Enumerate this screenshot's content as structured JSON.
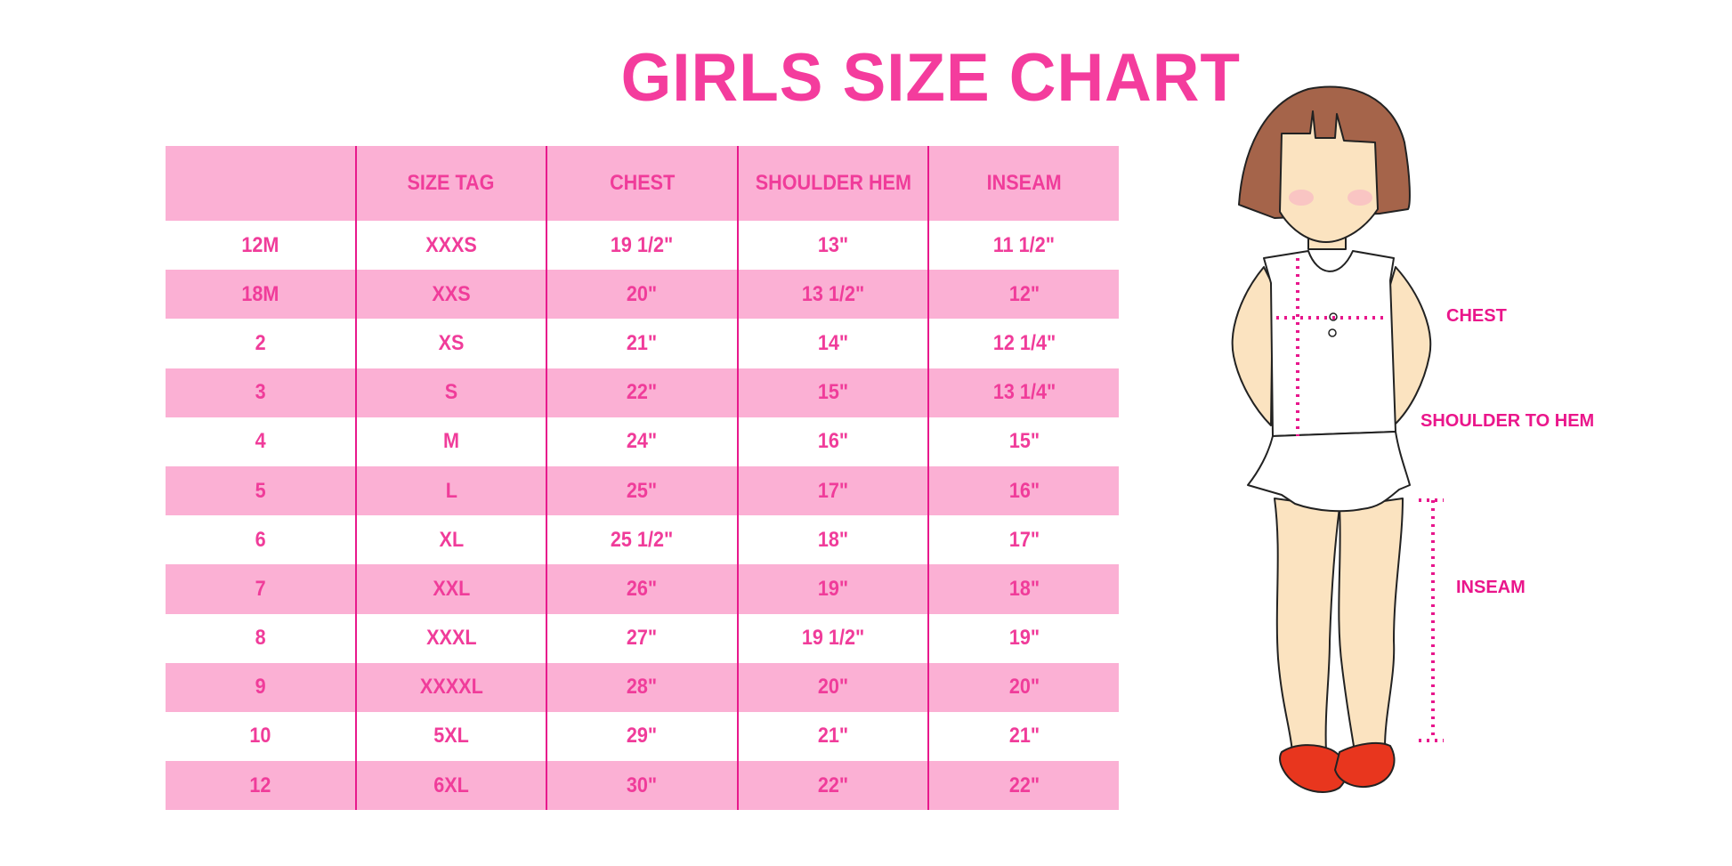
{
  "title": "GIRLS SIZE CHART",
  "table": {
    "headers": [
      "",
      "SIZE TAG",
      "CHEST",
      "SHOULDER HEM",
      "INSEAM"
    ],
    "rows": [
      [
        "12M",
        "XXXS",
        "19 1/2\"",
        "13\"",
        "11 1/2\""
      ],
      [
        "18M",
        "XXS",
        "20\"",
        "13 1/2\"",
        "12\""
      ],
      [
        "2",
        "XS",
        "21\"",
        "14\"",
        "12 1/4\""
      ],
      [
        "3",
        "S",
        "22\"",
        "15\"",
        "13 1/4\""
      ],
      [
        "4",
        "M",
        "24\"",
        "16\"",
        "15\""
      ],
      [
        "5",
        "L",
        "25\"",
        "17\"",
        "16\""
      ],
      [
        "6",
        "XL",
        "25 1/2\"",
        "18\"",
        "17\""
      ],
      [
        "7",
        "XXL",
        "26\"",
        "19\"",
        "18\""
      ],
      [
        "8",
        "XXXL",
        "27\"",
        "19 1/2\"",
        "19\""
      ],
      [
        "9",
        "XXXXL",
        "28\"",
        "20\"",
        "20\""
      ],
      [
        "10",
        "5XL",
        "29\"",
        "21\"",
        "21\""
      ],
      [
        "12",
        "6XL",
        "30\"",
        "22\"",
        "22\""
      ]
    ]
  },
  "figure": {
    "labels": {
      "chest": "CHEST",
      "shoulder_to_hem": "SHOULDER TO HEM",
      "inseam": "INSEAM"
    }
  },
  "colors": {
    "accent": "#f03c9a",
    "row_fill": "#fbb0d4",
    "divider": "#e8198c"
  }
}
